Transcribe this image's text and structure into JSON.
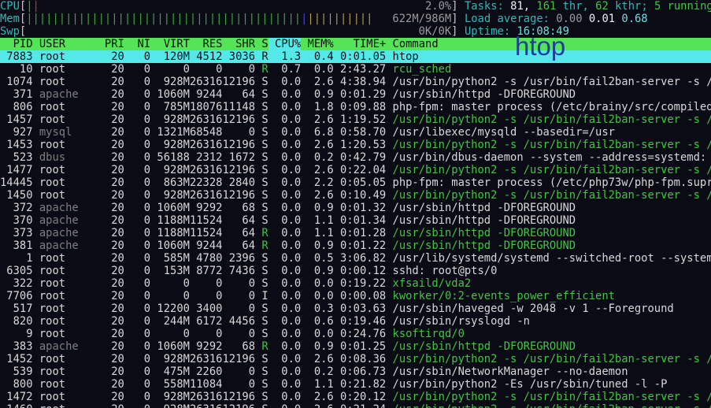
{
  "app": {
    "name": "htop"
  },
  "palette": {
    "background": "#0b0b16",
    "header_green": "#55e455",
    "selected_cyan": "#55e8e8",
    "text_white": "#d8d8d8",
    "text_dim_user": "#7e7e7e",
    "label_cyan": "#2fb8b8",
    "thread_green": "#41c541",
    "bar_green": "#3aa83a",
    "bar_red": "#bf3a2e",
    "bar_blue": "#4646c8",
    "bar_yellow": "#b39b50",
    "watermark_blue": "#1e3e9e"
  },
  "meters": {
    "bar_width_chars": 65,
    "cpu": {
      "label": "CPU",
      "value": "2.0%",
      "segments": [
        {
          "color": "green",
          "count": 1
        },
        {
          "color": "red",
          "count": 1
        }
      ]
    },
    "mem": {
      "label": "Mem",
      "value": "622M/986M",
      "segments": [
        {
          "color": "green",
          "count": 42
        },
        {
          "color": "blue",
          "count": 1
        },
        {
          "color": "yellow",
          "count": 10
        }
      ]
    },
    "swp": {
      "label": "Swp",
      "value": "0K/0K",
      "segments": []
    }
  },
  "info": {
    "tasks": {
      "segments": [
        [
          "Tasks: ",
          "cyan"
        ],
        [
          "81, ",
          "bwhite"
        ],
        [
          "161 ",
          "green"
        ],
        [
          "thr, ",
          "cyan"
        ],
        [
          "62 ",
          "green"
        ],
        [
          "kthr; ",
          "cyan"
        ],
        [
          "5 ",
          "green"
        ],
        [
          "running",
          "green"
        ]
      ]
    },
    "load": {
      "segments": [
        [
          "Load average: ",
          "cyan"
        ],
        [
          "0.00 ",
          "gray"
        ],
        [
          "0.01 ",
          "bwhite"
        ],
        [
          "0.68",
          "lcyan"
        ]
      ]
    },
    "uptime": {
      "segments": [
        [
          "Uptime: ",
          "cyan"
        ],
        [
          "16:08:49",
          "lcyan"
        ]
      ]
    }
  },
  "table": {
    "columns": [
      {
        "key": "pid",
        "label": "PID",
        "sorted": false
      },
      {
        "key": "user",
        "label": "USER",
        "sorted": false
      },
      {
        "key": "pri",
        "label": "PRI",
        "sorted": false
      },
      {
        "key": "ni",
        "label": "NI",
        "sorted": false
      },
      {
        "key": "virt",
        "label": "VIRT",
        "sorted": false
      },
      {
        "key": "res",
        "label": "RES",
        "sorted": false
      },
      {
        "key": "shr",
        "label": "SHR",
        "sorted": false
      },
      {
        "key": "state",
        "label": "S",
        "sorted": false
      },
      {
        "key": "cpu",
        "label": "CPU%",
        "sorted": true
      },
      {
        "key": "mem",
        "label": "MEM%",
        "sorted": false
      },
      {
        "key": "time",
        "label": "TIME+",
        "sorted": false
      },
      {
        "key": "command",
        "label": "Command",
        "sorted": false
      }
    ],
    "rows": [
      {
        "pid": "7883",
        "user": "root",
        "pri": "20",
        "ni": "0",
        "virt": "120M",
        "res": "4512",
        "shr": "3036",
        "state": "R",
        "cpu": "1.3",
        "mem": "0.4",
        "time": "0:01.05",
        "command": "htop",
        "selected": true
      },
      {
        "pid": "10",
        "user": "root",
        "pri": "20",
        "ni": "0",
        "virt": "0",
        "res": "0",
        "shr": "0",
        "state": "R",
        "cpu": "0.7",
        "mem": "0.0",
        "time": "2:43.27",
        "command": "rcu_sched",
        "green_cmd": true
      },
      {
        "pid": "1074",
        "user": "root",
        "pri": "20",
        "ni": "0",
        "virt": "928M",
        "res": "26316",
        "shr": "12196",
        "state": "S",
        "cpu": "0.0",
        "mem": "2.6",
        "time": "4:38.94",
        "command": "/usr/bin/python2 -s /usr/bin/fail2ban-server -s /v"
      },
      {
        "pid": "371",
        "user": "apache",
        "dim_user": true,
        "pri": "20",
        "ni": "0",
        "virt": "1060M",
        "res": "9244",
        "shr": "64",
        "state": "S",
        "cpu": "0.0",
        "mem": "0.9",
        "time": "0:01.29",
        "command": "/usr/sbin/httpd -DFOREGROUND"
      },
      {
        "pid": "806",
        "user": "root",
        "pri": "20",
        "ni": "0",
        "virt": "785M",
        "res": "18076",
        "shr": "11148",
        "state": "S",
        "cpu": "0.0",
        "mem": "1.8",
        "time": "0:09.88",
        "command": "php-fpm: master process (/etc/brainy/src/compiled/"
      },
      {
        "pid": "1457",
        "user": "root",
        "pri": "20",
        "ni": "0",
        "virt": "928M",
        "res": "26316",
        "shr": "12196",
        "state": "S",
        "cpu": "0.0",
        "mem": "2.6",
        "time": "1:19.52",
        "command": "/usr/bin/python2 -s /usr/bin/fail2ban-server -s /v",
        "green_cmd": true
      },
      {
        "pid": "927",
        "user": "mysql",
        "dim_user": true,
        "pri": "20",
        "ni": "0",
        "virt": "1321M",
        "res": "68548",
        "shr": "0",
        "state": "S",
        "cpu": "0.0",
        "mem": "6.8",
        "time": "0:58.70",
        "command": "/usr/libexec/mysqld --basedir=/usr"
      },
      {
        "pid": "1453",
        "user": "root",
        "pri": "20",
        "ni": "0",
        "virt": "928M",
        "res": "26316",
        "shr": "12196",
        "state": "S",
        "cpu": "0.0",
        "mem": "2.6",
        "time": "1:20.53",
        "command": "/usr/bin/python2 -s /usr/bin/fail2ban-server -s /v",
        "green_cmd": true
      },
      {
        "pid": "523",
        "user": "dbus",
        "dim_user": true,
        "pri": "20",
        "ni": "0",
        "virt": "56188",
        "res": "2312",
        "shr": "1672",
        "state": "S",
        "cpu": "0.0",
        "mem": "0.2",
        "time": "0:42.79",
        "command": "/usr/bin/dbus-daemon --system --address=systemd: -"
      },
      {
        "pid": "1477",
        "user": "root",
        "pri": "20",
        "ni": "0",
        "virt": "928M",
        "res": "26316",
        "shr": "12196",
        "state": "S",
        "cpu": "0.0",
        "mem": "2.6",
        "time": "0:22.04",
        "command": "/usr/bin/python2 -s /usr/bin/fail2ban-server -s /v",
        "green_cmd": true
      },
      {
        "pid": "14445",
        "user": "root",
        "pri": "20",
        "ni": "0",
        "virt": "863M",
        "res": "22328",
        "shr": "2840",
        "state": "S",
        "cpu": "0.0",
        "mem": "2.2",
        "time": "0:05.05",
        "command": "php-fpm: master process (/etc/php73w/php-fpm.supre"
      },
      {
        "pid": "1450",
        "user": "root",
        "pri": "20",
        "ni": "0",
        "virt": "928M",
        "res": "26316",
        "shr": "12196",
        "state": "S",
        "cpu": "0.0",
        "mem": "2.6",
        "time": "0:10.49",
        "command": "/usr/bin/python2 -s /usr/bin/fail2ban-server -s /v",
        "green_cmd": true
      },
      {
        "pid": "372",
        "user": "apache",
        "dim_user": true,
        "pri": "20",
        "ni": "0",
        "virt": "1060M",
        "res": "9292",
        "shr": "68",
        "state": "S",
        "cpu": "0.0",
        "mem": "0.9",
        "time": "0:01.32",
        "command": "/usr/sbin/httpd -DFOREGROUND"
      },
      {
        "pid": "370",
        "user": "apache",
        "dim_user": true,
        "pri": "20",
        "ni": "0",
        "virt": "1188M",
        "res": "11524",
        "shr": "64",
        "state": "S",
        "cpu": "0.0",
        "mem": "1.1",
        "time": "0:01.34",
        "command": "/usr/sbin/httpd -DFOREGROUND"
      },
      {
        "pid": "373",
        "user": "apache",
        "dim_user": true,
        "pri": "20",
        "ni": "0",
        "virt": "1188M",
        "res": "11524",
        "shr": "64",
        "state": "R",
        "cpu": "0.0",
        "mem": "1.1",
        "time": "0:01.28",
        "command": "/usr/sbin/httpd -DFOREGROUND",
        "green_cmd": true
      },
      {
        "pid": "381",
        "user": "apache",
        "dim_user": true,
        "pri": "20",
        "ni": "0",
        "virt": "1060M",
        "res": "9244",
        "shr": "64",
        "state": "R",
        "cpu": "0.0",
        "mem": "0.9",
        "time": "0:01.22",
        "command": "/usr/sbin/httpd -DFOREGROUND",
        "green_cmd": true
      },
      {
        "pid": "1",
        "user": "root",
        "pri": "20",
        "ni": "0",
        "virt": "585M",
        "res": "4780",
        "shr": "2396",
        "state": "S",
        "cpu": "0.0",
        "mem": "0.5",
        "time": "3:06.82",
        "command": "/usr/lib/systemd/systemd --switched-root --system "
      },
      {
        "pid": "6305",
        "user": "root",
        "pri": "20",
        "ni": "0",
        "virt": "153M",
        "res": "8772",
        "shr": "7436",
        "state": "S",
        "cpu": "0.0",
        "mem": "0.9",
        "time": "0:00.12",
        "command": "sshd: root@pts/0"
      },
      {
        "pid": "322",
        "user": "root",
        "pri": "20",
        "ni": "0",
        "virt": "0",
        "res": "0",
        "shr": "0",
        "state": "S",
        "cpu": "0.0",
        "mem": "0.0",
        "time": "0:19.22",
        "command": "xfsaild/vda2",
        "green_cmd": true
      },
      {
        "pid": "7706",
        "user": "root",
        "pri": "20",
        "ni": "0",
        "virt": "0",
        "res": "0",
        "shr": "0",
        "state": "I",
        "cpu": "0.0",
        "mem": "0.0",
        "time": "0:00.08",
        "command": "kworker/0:2-events_power_efficient",
        "green_cmd": true
      },
      {
        "pid": "517",
        "user": "root",
        "pri": "20",
        "ni": "0",
        "virt": "12200",
        "res": "3400",
        "shr": "0",
        "state": "S",
        "cpu": "0.0",
        "mem": "0.3",
        "time": "0:03.63",
        "command": "/usr/sbin/haveged -w 2048 -v 1 --Foreground"
      },
      {
        "pid": "820",
        "user": "root",
        "pri": "20",
        "ni": "0",
        "virt": "244M",
        "res": "6172",
        "shr": "4456",
        "state": "S",
        "cpu": "0.0",
        "mem": "0.6",
        "time": "0:19.46",
        "command": "/usr/sbin/rsyslogd -n"
      },
      {
        "pid": "9",
        "user": "root",
        "pri": "20",
        "ni": "0",
        "virt": "0",
        "res": "0",
        "shr": "0",
        "state": "S",
        "cpu": "0.0",
        "mem": "0.0",
        "time": "0:24.76",
        "command": "ksoftirqd/0",
        "green_cmd": true
      },
      {
        "pid": "383",
        "user": "apache",
        "dim_user": true,
        "pri": "20",
        "ni": "0",
        "virt": "1060M",
        "res": "9292",
        "shr": "68",
        "state": "R",
        "cpu": "0.0",
        "mem": "0.9",
        "time": "0:01.25",
        "command": "/usr/sbin/httpd -DFOREGROUND",
        "green_cmd": true
      },
      {
        "pid": "1452",
        "user": "root",
        "pri": "20",
        "ni": "0",
        "virt": "928M",
        "res": "26316",
        "shr": "12196",
        "state": "S",
        "cpu": "0.0",
        "mem": "2.6",
        "time": "0:08.36",
        "command": "/usr/bin/python2 -s /usr/bin/fail2ban-server -s /v",
        "green_cmd": true
      },
      {
        "pid": "539",
        "user": "root",
        "pri": "20",
        "ni": "0",
        "virt": "475M",
        "res": "2260",
        "shr": "0",
        "state": "S",
        "cpu": "0.0",
        "mem": "0.2",
        "time": "0:06.73",
        "command": "/usr/sbin/NetworkManager --no-daemon"
      },
      {
        "pid": "800",
        "user": "root",
        "pri": "20",
        "ni": "0",
        "virt": "558M",
        "res": "11084",
        "shr": "0",
        "state": "S",
        "cpu": "0.0",
        "mem": "1.1",
        "time": "0:21.82",
        "command": "/usr/bin/python2 -Es /usr/sbin/tuned -l -P"
      },
      {
        "pid": "1472",
        "user": "root",
        "pri": "20",
        "ni": "0",
        "virt": "928M",
        "res": "26316",
        "shr": "12196",
        "state": "S",
        "cpu": "0.0",
        "mem": "2.6",
        "time": "0:20.12",
        "command": "/usr/bin/python2 -s /usr/bin/fail2ban-server -s /v",
        "green_cmd": true
      },
      {
        "pid": "1460",
        "user": "root",
        "pri": "20",
        "ni": "0",
        "virt": "928M",
        "res": "26316",
        "shr": "12196",
        "state": "S",
        "cpu": "0.0",
        "mem": "2.6",
        "time": "0:21.24",
        "command": "/usr/bin/python2 -s /usr/bin/fail2ban-server -s /v",
        "green_cmd": true,
        "partial": true
      }
    ]
  },
  "watermark": {
    "text": "htop",
    "color": "#1e3e9e"
  }
}
